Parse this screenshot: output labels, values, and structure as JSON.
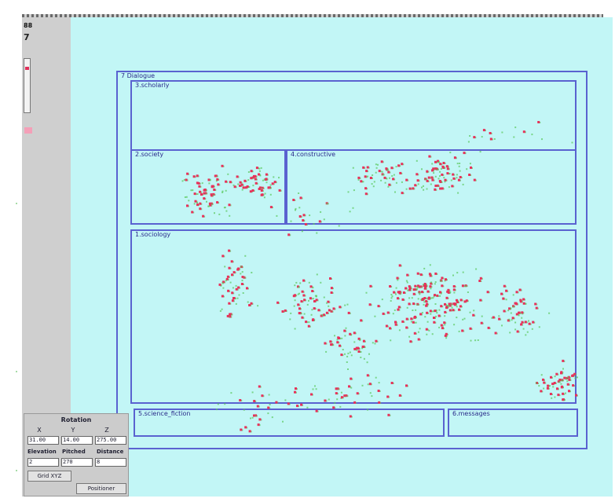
{
  "toolbar": {
    "label_top": "88",
    "label_second": "7"
  },
  "map": {
    "root_label": "7 Dialogue",
    "regions": [
      {
        "id": "top",
        "label": "3.scholarly"
      },
      {
        "id": "mid-left",
        "label": "2.society"
      },
      {
        "id": "mid-right",
        "label": "4.constructive"
      },
      {
        "id": "main",
        "label": "1.sociology"
      },
      {
        "id": "bottom-left",
        "label": "5.science_fiction"
      },
      {
        "id": "bottom-right",
        "label": "6.messages"
      }
    ]
  },
  "settings": {
    "title": "Rotation",
    "axes": [
      "X",
      "Y",
      "Z"
    ],
    "values": [
      "31.00",
      "14.00",
      "275.00"
    ],
    "param_labels": [
      "Elevation",
      "Pitched",
      "Distance"
    ],
    "param_values": [
      "2",
      "270",
      "8"
    ],
    "mode_label": "Grid XYZ",
    "position_button": "Positioner"
  },
  "colors": {
    "canvas": "#c2f6f6",
    "frame": "#5a62d0",
    "point_primary": "#e8305a",
    "point_secondary": "#58c858"
  }
}
